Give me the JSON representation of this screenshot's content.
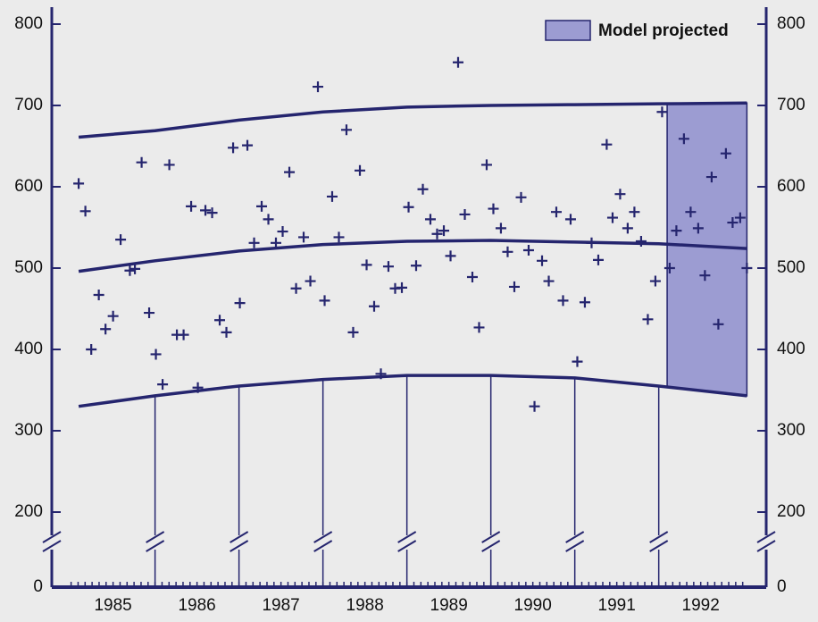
{
  "chart_data": {
    "type": "scatter",
    "color": "#25256e",
    "projected_color": "#9c9cd2",
    "y_axis_break": true,
    "xlim": [
      1984.77,
      1993.28
    ],
    "xticks": [
      {
        "value": 1985.5,
        "label": "1985"
      },
      {
        "value": 1986.5,
        "label": "1986"
      },
      {
        "value": 1987.5,
        "label": "1987"
      },
      {
        "value": 1988.5,
        "label": "1988"
      },
      {
        "value": 1989.5,
        "label": "1989"
      },
      {
        "value": 1990.5,
        "label": "1990"
      },
      {
        "value": 1991.5,
        "label": "1991"
      },
      {
        "value": 1992.5,
        "label": "1992"
      }
    ],
    "ylim": [
      0,
      800
    ],
    "yticks": [
      0,
      200,
      300,
      400,
      500,
      600,
      700,
      800
    ],
    "projected": {
      "label": "Model projected",
      "x": [
        1992.1,
        1993.05
      ]
    },
    "points": {
      "x": [
        1985.09,
        1985.17,
        1985.24,
        1985.33,
        1985.41,
        1985.5,
        1985.59,
        1985.7,
        1985.76,
        1985.84,
        1985.93,
        1986.01,
        1986.09,
        1986.17,
        1986.26,
        1986.34,
        1986.43,
        1986.51,
        1986.6,
        1986.68,
        1986.77,
        1986.85,
        1986.93,
        1987.01,
        1987.1,
        1987.18,
        1987.27,
        1987.35,
        1987.44,
        1987.52,
        1987.6,
        1987.68,
        1987.77,
        1987.85,
        1987.94,
        1988.02,
        1988.11,
        1988.19,
        1988.28,
        1988.36,
        1988.44,
        1988.52,
        1988.61,
        1988.69,
        1988.78,
        1988.86,
        1988.94,
        1989.02,
        1989.11,
        1989.19,
        1989.28,
        1989.36,
        1989.44,
        1989.52,
        1989.61,
        1989.69,
        1989.78,
        1989.86,
        1989.95,
        1990.03,
        1990.12,
        1990.2,
        1990.28,
        1990.36,
        1990.45,
        1990.52,
        1990.61,
        1990.69,
        1990.78,
        1990.86,
        1990.95,
        1991.03,
        1991.12,
        1991.2,
        1991.28,
        1991.38,
        1991.45,
        1991.54,
        1991.63,
        1991.71,
        1991.79,
        1991.87,
        1991.96,
        1992.04,
        1992.13,
        1992.21,
        1992.3,
        1992.38,
        1992.47,
        1992.55,
        1992.63,
        1992.71,
        1992.8,
        1992.88,
        1992.97,
        1993.05
      ],
      "values": [
        604,
        570,
        400,
        467,
        425,
        441,
        535,
        497,
        499,
        630,
        445,
        394,
        357,
        627,
        418,
        418,
        576,
        353,
        571,
        568,
        436,
        421,
        648,
        457,
        651,
        531,
        576,
        560,
        531,
        545,
        618,
        475,
        538,
        484,
        723,
        460,
        588,
        538,
        670,
        421,
        620,
        504,
        453,
        370,
        502,
        475,
        476,
        575,
        503,
        597,
        560,
        542,
        546,
        515,
        753,
        566,
        489,
        427,
        627,
        573,
        549,
        520,
        477,
        587,
        522,
        330,
        509,
        484,
        569,
        460,
        560,
        385,
        458,
        531,
        510,
        652,
        562,
        591,
        549,
        569,
        533,
        437,
        484,
        692,
        500,
        546,
        659,
        569,
        549,
        491,
        612,
        431,
        641,
        556,
        562,
        500
      ]
    },
    "curves": [
      {
        "x": [
          1985.09,
          1986,
          1987,
          1988,
          1989,
          1990,
          1991,
          1992,
          1993.05
        ],
        "values": [
          661,
          669,
          682,
          692,
          698,
          700,
          701,
          702,
          703
        ]
      },
      {
        "x": [
          1985.09,
          1986,
          1987,
          1988,
          1989,
          1990,
          1991,
          1992,
          1993.05
        ],
        "values": [
          496,
          509,
          521,
          529,
          533,
          534,
          532,
          530,
          524
        ]
      },
      {
        "x": [
          1985.09,
          1986,
          1987,
          1988,
          1989,
          1990,
          1991,
          1992,
          1993.05
        ],
        "values": [
          330,
          343,
          355,
          363,
          368,
          368,
          365,
          355,
          343
        ]
      }
    ]
  }
}
